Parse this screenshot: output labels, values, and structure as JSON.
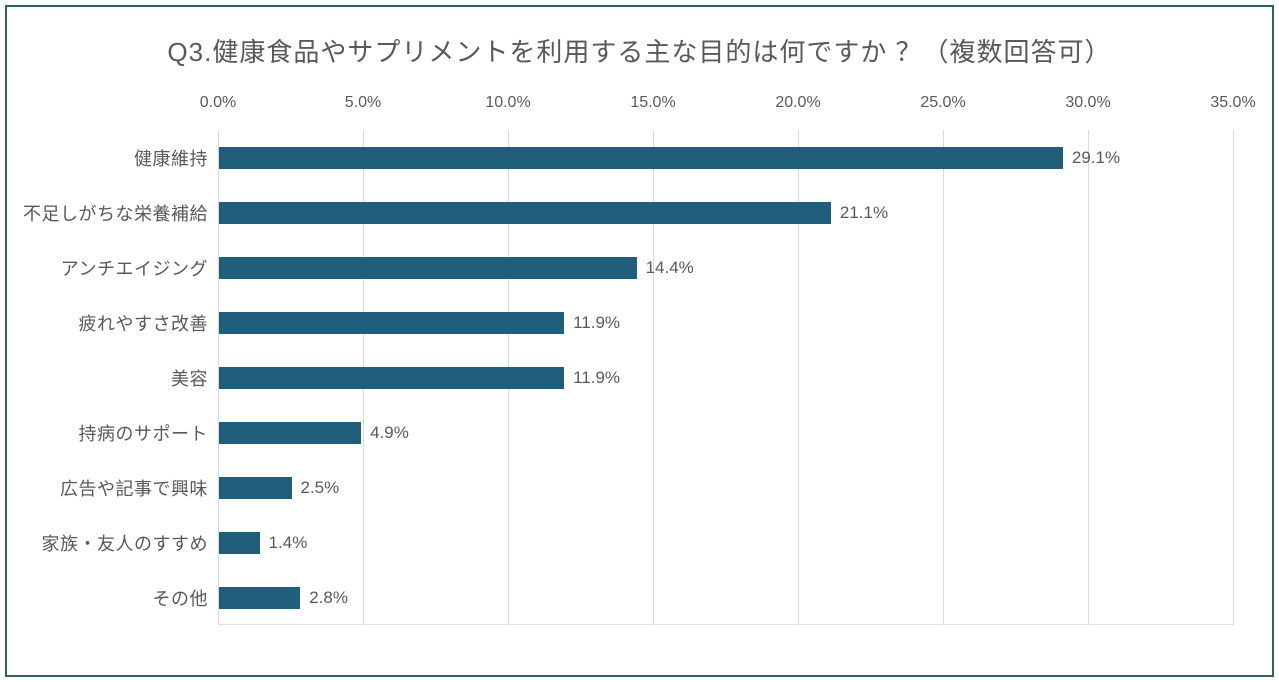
{
  "frame": {
    "border_color": "#2E5F6D",
    "background": "#FFFFFF"
  },
  "chart_data": {
    "type": "bar",
    "orientation": "horizontal",
    "title": "Q3.健康食品やサプリメントを利用する主な目的は何ですか ？（複数回答可）",
    "categories": [
      "健康維持",
      "不足しがちな栄養補給",
      "アンチエイジング",
      "疲れやすさ改善",
      "美容",
      "持病のサポート",
      "広告や記事で興味",
      "家族・友人のすすめ",
      "その他"
    ],
    "values": [
      29.1,
      21.1,
      14.4,
      11.9,
      11.9,
      4.9,
      2.5,
      1.4,
      2.8
    ],
    "data_labels": [
      "29.1%",
      "21.1%",
      "14.4%",
      "11.9%",
      "11.9%",
      "4.9%",
      "2.5%",
      "1.4%",
      "2.8%"
    ],
    "x_ticks": [
      "0.0%",
      "5.0%",
      "10.0%",
      "15.0%",
      "20.0%",
      "25.0%",
      "30.0%",
      "35.0%"
    ],
    "x_tick_values": [
      0,
      5,
      10,
      15,
      20,
      25,
      30,
      35
    ],
    "xlim": [
      0,
      35
    ],
    "xlabel": "",
    "ylabel": "",
    "legend": "none",
    "grid": "vertical",
    "bar_color": "#1F5F7C",
    "grid_color": "#D9D9D9",
    "text_color": "#595959"
  }
}
